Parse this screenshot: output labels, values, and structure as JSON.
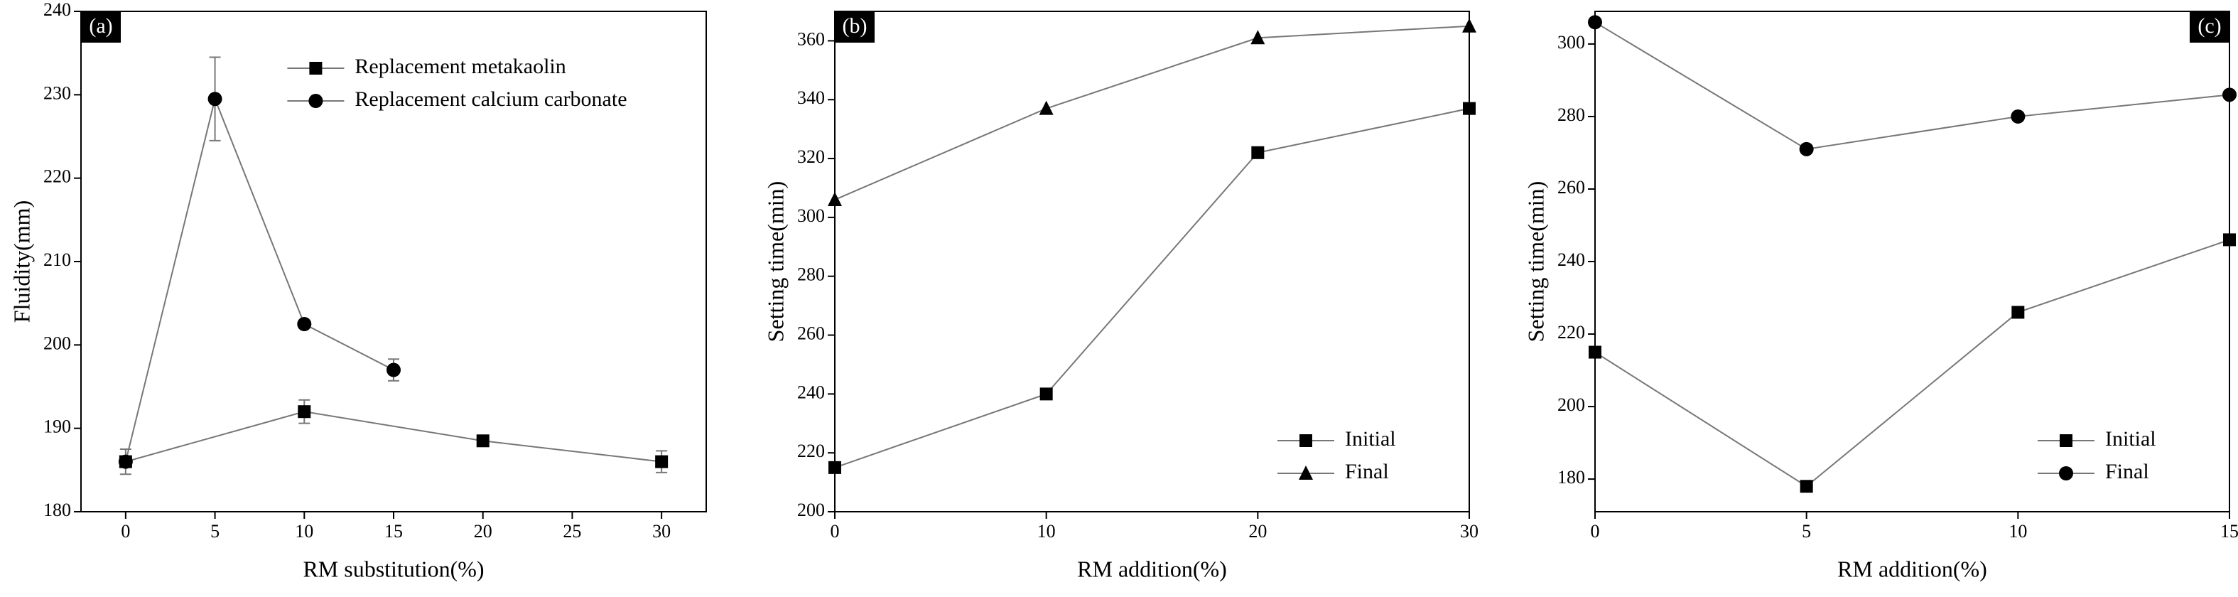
{
  "chart_data": [
    {
      "type": "line",
      "panel_label": "(a)",
      "panel_label_corner": "top-left",
      "x_label": "RM substitution(%)",
      "y_label": "Fluidity(mm)",
      "xlim": [
        -2.5,
        32.5
      ],
      "ylim": [
        180,
        240
      ],
      "xticks": [
        0,
        5,
        10,
        15,
        20,
        25,
        30
      ],
      "yticks": [
        180,
        190,
        200,
        210,
        220,
        230,
        240
      ],
      "legend": "upper center",
      "series": [
        {
          "name": "Replacement metakaolin",
          "color": "#000000",
          "marker": "square",
          "x": [
            0,
            10,
            20,
            30
          ],
          "values": [
            186,
            192,
            188.5,
            186
          ],
          "errors": [
            1.5,
            1.4,
            0,
            1.3
          ]
        },
        {
          "name": "Replacement calcium carbonate",
          "color": "#000000",
          "marker": "circle",
          "x": [
            0,
            5,
            10,
            15
          ],
          "values": [
            186,
            229.5,
            202.5,
            197
          ],
          "errors": [
            0,
            5,
            0,
            1.3
          ]
        }
      ]
    },
    {
      "type": "line",
      "panel_label": "(b)",
      "panel_label_corner": "top-left",
      "x_label": "RM addition(%)",
      "y_label": "Setting time(min)",
      "xlim": [
        0,
        30
      ],
      "ylim": [
        200,
        370
      ],
      "xticks": [
        0,
        10,
        20,
        30
      ],
      "yticks": [
        200,
        220,
        240,
        260,
        280,
        300,
        320,
        340,
        360
      ],
      "legend": "lower right",
      "series": [
        {
          "name": "Initial",
          "color": "#000000",
          "marker": "square",
          "x": [
            0,
            10,
            20,
            30
          ],
          "values": [
            215,
            240,
            322,
            337
          ]
        },
        {
          "name": "Final",
          "color": "#000000",
          "marker": "triangle",
          "x": [
            0,
            10,
            20,
            30
          ],
          "values": [
            306,
            337,
            361,
            365
          ]
        }
      ]
    },
    {
      "type": "line",
      "panel_label": "(c)",
      "panel_label_corner": "top-right",
      "x_label": "RM addition(%)",
      "y_label": "Setting time(min)",
      "xlim": [
        0,
        15
      ],
      "ylim": [
        171,
        309
      ],
      "xticks": [
        0,
        5,
        10,
        15
      ],
      "yticks": [
        180,
        200,
        220,
        240,
        260,
        280,
        300
      ],
      "legend": "lower right",
      "series": [
        {
          "name": "Initial",
          "color": "#000000",
          "marker": "square",
          "x": [
            0,
            5,
            10,
            15
          ],
          "values": [
            215,
            178,
            226,
            246
          ]
        },
        {
          "name": "Final",
          "color": "#000000",
          "marker": "circle",
          "x": [
            0,
            5,
            10,
            15
          ],
          "values": [
            306,
            271,
            280,
            286
          ]
        }
      ]
    }
  ]
}
